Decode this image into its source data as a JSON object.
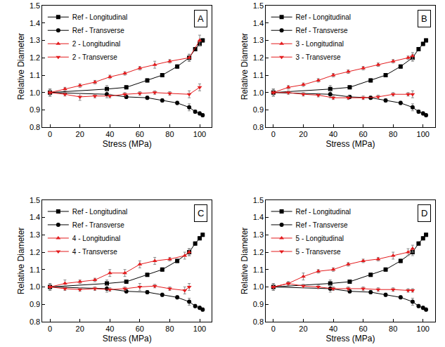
{
  "chart_data": [
    {
      "type": "line",
      "annotations": [
        "A"
      ],
      "x_label": "Stress (MPa)",
      "y_label": "Relative Diameter",
      "xlim": [
        -5,
        108
      ],
      "xticks": [
        0,
        20,
        40,
        60,
        80,
        100
      ],
      "ylim": [
        0.8,
        1.5
      ],
      "yticks": [
        {
          "value": 0.8,
          "label": "0.8"
        },
        {
          "value": 0.9,
          "label": "0.9"
        },
        {
          "value": 1,
          "label": "1.0"
        },
        {
          "value": 1.1,
          "label": "1.1"
        },
        {
          "value": 1.2,
          "label": "1.2"
        },
        {
          "value": 1.3,
          "label": "1.3"
        },
        {
          "value": 1.4,
          "label": "1.4"
        },
        {
          "value": 1.5,
          "label": "1.5"
        }
      ],
      "grid": false,
      "legend": "top left",
      "series": [
        {
          "name": "Ref - Longitudinal",
          "color": "#000000",
          "marker": "square",
          "line_style": "solid",
          "x": [
            0,
            38,
            51,
            65,
            75,
            85,
            93,
            97,
            100,
            102
          ],
          "values": [
            1.0,
            1.02,
            1.03,
            1.07,
            1.1,
            1.15,
            1.2,
            1.25,
            1.28,
            1.3
          ],
          "error": [
            0.02,
            0.02,
            0.01,
            0.01,
            0.01,
            0.01,
            0.02,
            0.01,
            0.01,
            0.01
          ]
        },
        {
          "name": "Ref - Transverse",
          "color": "#000000",
          "marker": "circle",
          "line_style": "solid",
          "x": [
            0,
            38,
            51,
            65,
            75,
            85,
            93,
            97,
            100,
            102
          ],
          "values": [
            1.0,
            0.99,
            0.975,
            0.97,
            0.955,
            0.94,
            0.915,
            0.89,
            0.88,
            0.87
          ],
          "error": [
            0.02,
            0.02,
            0.01,
            0.01,
            0.01,
            0.01,
            0.02,
            0.01,
            0.01,
            0.01
          ]
        },
        {
          "name": "2 - Longitudinal",
          "color": "#e31a1c",
          "marker": "triangle-up",
          "line_style": "solid",
          "x": [
            0,
            10,
            20,
            30,
            40,
            50,
            60,
            70,
            80,
            93,
            100
          ],
          "values": [
            1.0,
            1.02,
            1.04,
            1.06,
            1.09,
            1.11,
            1.14,
            1.16,
            1.18,
            1.2,
            1.3
          ],
          "error": [
            0.02,
            0.01,
            0.01,
            0.01,
            0.01,
            0.01,
            0.01,
            0.02,
            0.01,
            0.02,
            0.03
          ]
        },
        {
          "name": "2 - Transverse",
          "color": "#e31a1c",
          "marker": "triangle-down",
          "line_style": "solid",
          "x": [
            0,
            10,
            20,
            30,
            40,
            50,
            60,
            70,
            80,
            93,
            100
          ],
          "values": [
            1.0,
            0.99,
            0.975,
            0.98,
            0.98,
            0.99,
            0.995,
            1.0,
            0.995,
            0.99,
            1.03
          ],
          "error": [
            0.02,
            0.01,
            0.02,
            0.01,
            0.01,
            0.01,
            0.01,
            0.01,
            0.01,
            0.02,
            0.02
          ]
        }
      ]
    },
    {
      "type": "line",
      "annotations": [
        "B"
      ],
      "x_label": "Stress (MPa)",
      "y_label": "Relative Diameter",
      "xlim": [
        -5,
        108
      ],
      "xticks": [
        0,
        20,
        40,
        60,
        80,
        100
      ],
      "ylim": [
        0.8,
        1.5
      ],
      "yticks": [
        {
          "value": 0.8,
          "label": "0.8"
        },
        {
          "value": 0.9,
          "label": "0.9"
        },
        {
          "value": 1,
          "label": "1.0"
        },
        {
          "value": 1.1,
          "label": "1.1"
        },
        {
          "value": 1.2,
          "label": "1.2"
        },
        {
          "value": 1.3,
          "label": "1.3"
        },
        {
          "value": 1.4,
          "label": "1.4"
        },
        {
          "value": 1.5,
          "label": "1.5"
        }
      ],
      "grid": false,
      "legend": "top left",
      "series": [
        {
          "name": "Ref - Longitudinal",
          "color": "#000000",
          "marker": "square",
          "line_style": "solid",
          "x": [
            0,
            38,
            51,
            65,
            75,
            85,
            93,
            97,
            100,
            102
          ],
          "values": [
            1.0,
            1.02,
            1.03,
            1.07,
            1.1,
            1.15,
            1.2,
            1.25,
            1.28,
            1.3
          ],
          "error": [
            0.02,
            0.02,
            0.01,
            0.01,
            0.01,
            0.01,
            0.02,
            0.01,
            0.01,
            0.01
          ]
        },
        {
          "name": "Ref - Transverse",
          "color": "#000000",
          "marker": "circle",
          "line_style": "solid",
          "x": [
            0,
            38,
            51,
            65,
            75,
            85,
            93,
            97,
            100,
            102
          ],
          "values": [
            1.0,
            0.99,
            0.975,
            0.97,
            0.955,
            0.94,
            0.915,
            0.89,
            0.88,
            0.87
          ],
          "error": [
            0.02,
            0.02,
            0.01,
            0.01,
            0.01,
            0.01,
            0.02,
            0.01,
            0.01,
            0.01
          ]
        },
        {
          "name": "3 - Longitudinal",
          "color": "#e31a1c",
          "marker": "triangle-up",
          "line_style": "solid",
          "x": [
            0,
            10,
            20,
            30,
            40,
            50,
            60,
            70,
            80,
            90,
            93
          ],
          "values": [
            1.0,
            1.03,
            1.045,
            1.07,
            1.1,
            1.12,
            1.14,
            1.16,
            1.18,
            1.2,
            1.21
          ],
          "error": [
            0.02,
            0.01,
            0.01,
            0.01,
            0.01,
            0.01,
            0.01,
            0.01,
            0.01,
            0.01,
            0.02
          ]
        },
        {
          "name": "3 - Transverse",
          "color": "#e31a1c",
          "marker": "triangle-down",
          "line_style": "solid",
          "x": [
            0,
            10,
            20,
            30,
            40,
            50,
            60,
            70,
            80,
            90,
            93
          ],
          "values": [
            1.0,
            1.0,
            0.99,
            0.985,
            0.97,
            0.97,
            0.97,
            0.975,
            0.99,
            0.99,
            0.99
          ],
          "error": [
            0.02,
            0.01,
            0.01,
            0.01,
            0.01,
            0.01,
            0.01,
            0.01,
            0.01,
            0.01,
            0.02
          ]
        }
      ]
    },
    {
      "type": "line",
      "annotations": [
        "C"
      ],
      "x_label": "Stress (MPa)",
      "y_label": "Relative Diameter",
      "xlim": [
        -5,
        108
      ],
      "xticks": [
        0,
        20,
        40,
        60,
        80,
        100
      ],
      "ylim": [
        0.8,
        1.5
      ],
      "yticks": [
        {
          "value": 0.8,
          "label": "0.8"
        },
        {
          "value": 0.9,
          "label": "0.9"
        },
        {
          "value": 1,
          "label": "1.0"
        },
        {
          "value": 1.1,
          "label": "1.1"
        },
        {
          "value": 1.2,
          "label": "1.2"
        },
        {
          "value": 1.3,
          "label": "1.3"
        },
        {
          "value": 1.4,
          "label": "1.4"
        },
        {
          "value": 1.5,
          "label": "1.5"
        }
      ],
      "grid": false,
      "legend": "top left",
      "series": [
        {
          "name": "Ref - Longitudinal",
          "color": "#000000",
          "marker": "square",
          "line_style": "solid",
          "x": [
            0,
            38,
            51,
            65,
            75,
            85,
            93,
            97,
            100,
            102
          ],
          "values": [
            1.0,
            1.02,
            1.03,
            1.07,
            1.1,
            1.15,
            1.2,
            1.25,
            1.28,
            1.3
          ],
          "error": [
            0.02,
            0.02,
            0.01,
            0.01,
            0.01,
            0.01,
            0.02,
            0.01,
            0.01,
            0.01
          ]
        },
        {
          "name": "Ref - Transverse",
          "color": "#000000",
          "marker": "circle",
          "line_style": "solid",
          "x": [
            0,
            38,
            51,
            65,
            75,
            85,
            93,
            97,
            100,
            102
          ],
          "values": [
            1.0,
            0.99,
            0.975,
            0.97,
            0.955,
            0.94,
            0.915,
            0.89,
            0.88,
            0.87
          ],
          "error": [
            0.02,
            0.02,
            0.01,
            0.01,
            0.01,
            0.01,
            0.02,
            0.01,
            0.01,
            0.01
          ]
        },
        {
          "name": "4 - Longitudinal",
          "color": "#e31a1c",
          "marker": "triangle-up",
          "line_style": "solid",
          "x": [
            0,
            10,
            20,
            30,
            40,
            50,
            60,
            70,
            80,
            90,
            93
          ],
          "values": [
            1.0,
            1.02,
            1.03,
            1.04,
            1.08,
            1.08,
            1.13,
            1.15,
            1.16,
            1.18,
            1.2
          ],
          "error": [
            0.02,
            0.02,
            0.01,
            0.01,
            0.02,
            0.02,
            0.02,
            0.02,
            0.01,
            0.02,
            0.02
          ]
        },
        {
          "name": "4 - Transverse",
          "color": "#e31a1c",
          "marker": "triangle-down",
          "line_style": "solid",
          "x": [
            0,
            10,
            20,
            30,
            40,
            50,
            60,
            70,
            80,
            90,
            93
          ],
          "values": [
            1.0,
            0.99,
            0.985,
            0.99,
            0.985,
            0.99,
            1.0,
            1.005,
            0.99,
            0.98,
            1.0
          ],
          "error": [
            0.02,
            0.01,
            0.01,
            0.01,
            0.01,
            0.01,
            0.02,
            0.01,
            0.01,
            0.02,
            0.02
          ]
        }
      ]
    },
    {
      "type": "line",
      "annotations": [
        "D"
      ],
      "x_label": "Stress (MPa)",
      "y_label": "Relative Diameter",
      "xlim": [
        -5,
        108
      ],
      "xticks": [
        0,
        20,
        40,
        60,
        80,
        100
      ],
      "ylim": [
        0.8,
        1.5
      ],
      "yticks": [
        {
          "value": 0.8,
          "label": "0.8"
        },
        {
          "value": 0.9,
          "label": "0.9"
        },
        {
          "value": 1,
          "label": "1.0"
        },
        {
          "value": 1.1,
          "label": "1.1"
        },
        {
          "value": 1.2,
          "label": "1.2"
        },
        {
          "value": 1.3,
          "label": "1.3"
        },
        {
          "value": 1.4,
          "label": "1.4"
        },
        {
          "value": 1.5,
          "label": "1.5"
        }
      ],
      "grid": false,
      "legend": "top left",
      "series": [
        {
          "name": "Ref - Longitudinal",
          "color": "#000000",
          "marker": "square",
          "line_style": "solid",
          "x": [
            0,
            38,
            51,
            65,
            75,
            85,
            93,
            97,
            100,
            102
          ],
          "values": [
            1.0,
            1.02,
            1.03,
            1.07,
            1.1,
            1.15,
            1.2,
            1.25,
            1.28,
            1.3
          ],
          "error": [
            0.02,
            0.02,
            0.01,
            0.01,
            0.01,
            0.01,
            0.02,
            0.01,
            0.01,
            0.01
          ]
        },
        {
          "name": "Ref - Transverse",
          "color": "#000000",
          "marker": "circle",
          "line_style": "solid",
          "x": [
            0,
            38,
            51,
            65,
            75,
            85,
            93,
            97,
            100,
            102
          ],
          "values": [
            1.0,
            0.99,
            0.975,
            0.97,
            0.955,
            0.94,
            0.915,
            0.89,
            0.88,
            0.87
          ],
          "error": [
            0.02,
            0.02,
            0.01,
            0.01,
            0.01,
            0.01,
            0.02,
            0.01,
            0.01,
            0.01
          ]
        },
        {
          "name": "5 - Longitudinal",
          "color": "#e31a1c",
          "marker": "triangle-up",
          "line_style": "solid",
          "x": [
            0,
            10,
            20,
            30,
            40,
            50,
            60,
            70,
            80,
            90,
            93
          ],
          "values": [
            1.0,
            1.02,
            1.06,
            1.09,
            1.1,
            1.13,
            1.15,
            1.16,
            1.18,
            1.2,
            1.22
          ],
          "error": [
            0.02,
            0.01,
            0.02,
            0.01,
            0.01,
            0.01,
            0.01,
            0.01,
            0.02,
            0.02,
            0.02
          ]
        },
        {
          "name": "5 - Transverse",
          "color": "#e31a1c",
          "marker": "triangle-down",
          "line_style": "solid",
          "x": [
            0,
            10,
            20,
            30,
            40,
            50,
            60,
            70,
            80,
            90,
            93
          ],
          "values": [
            1.0,
            1.02,
            1.005,
            1.0,
            0.99,
            0.99,
            0.99,
            0.985,
            0.985,
            0.98,
            0.98
          ],
          "error": [
            0.02,
            0.01,
            0.01,
            0.01,
            0.01,
            0.01,
            0.01,
            0.01,
            0.01,
            0.01,
            0.01
          ]
        }
      ]
    }
  ]
}
